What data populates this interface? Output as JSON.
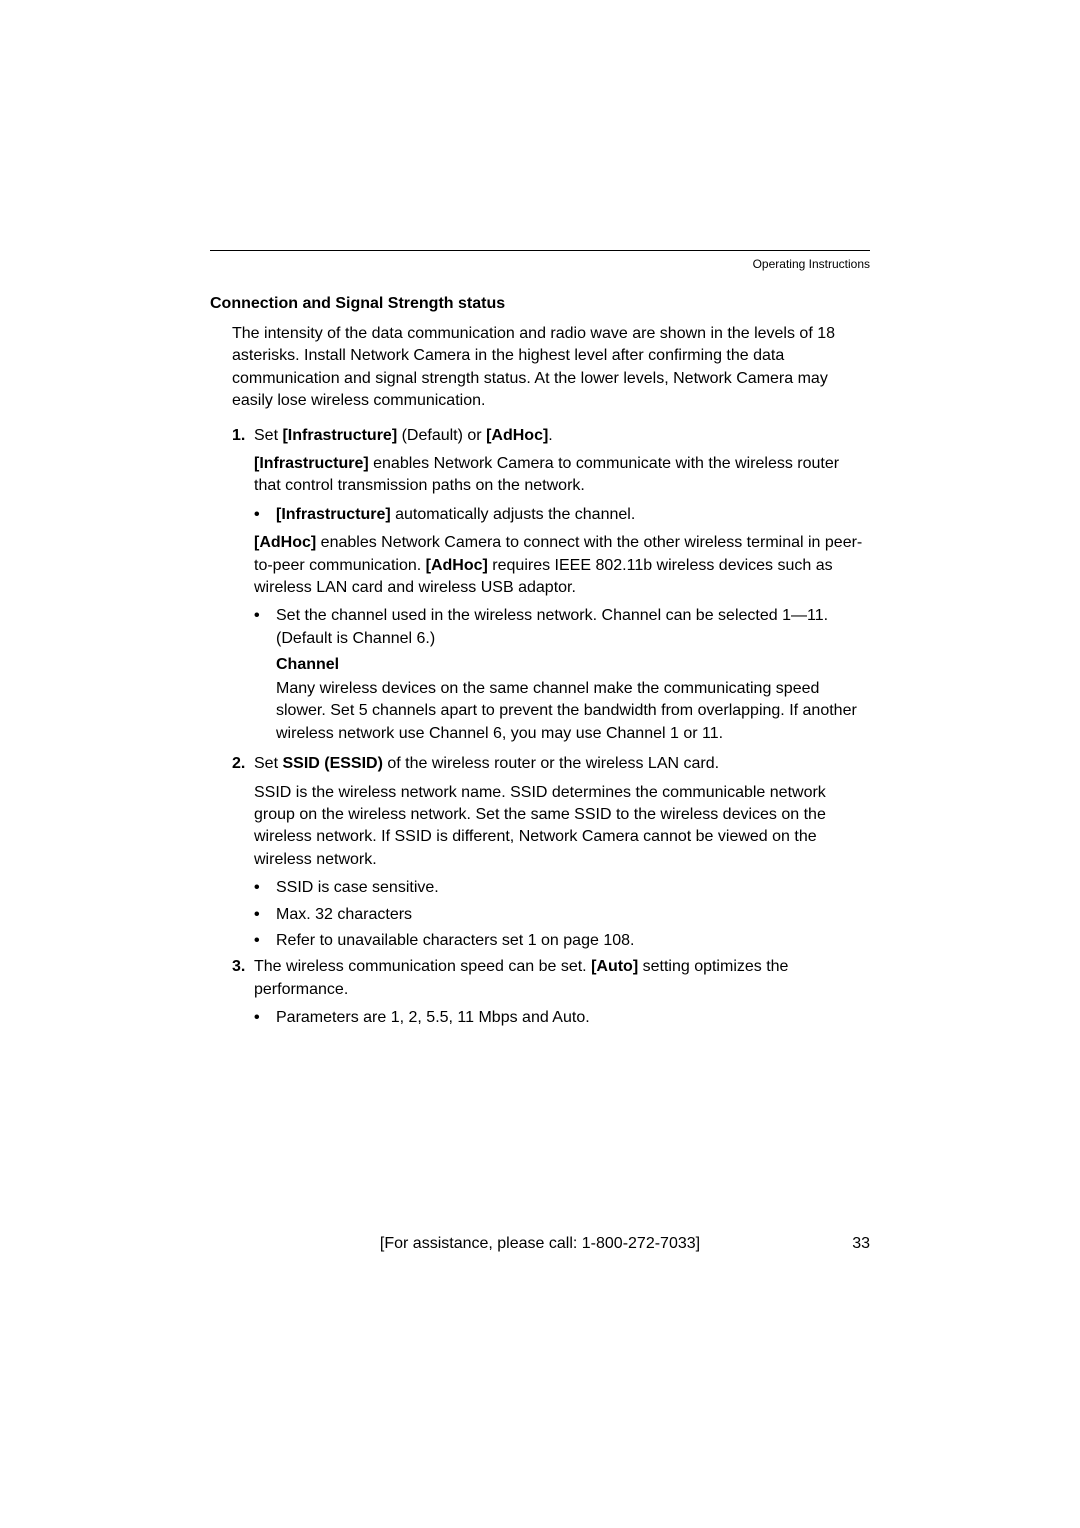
{
  "header": {
    "docTitle": "Operating Instructions"
  },
  "section": {
    "title": "Connection and Signal Strength status",
    "intro": "The intensity of the data communication and radio wave are shown in the levels of 18 asterisks. Install Network Camera in the highest level after confirming the data communication and signal strength status. At the lower levels, Network Camera may easily lose wireless communication."
  },
  "items": {
    "one": {
      "num": "1.",
      "pre": "Set ",
      "b1": "[Infrastructure]",
      "mid1": " (Default) or ",
      "b2": "[AdHoc]",
      "post": ".",
      "p1a": "[Infrastructure]",
      "p1b": " enables Network Camera to communicate with the wireless router that control transmission paths on the network.",
      "bullet1a": "[Infrastructure]",
      "bullet1b": " automatically adjusts the channel.",
      "p2a": "[AdHoc]",
      "p2b": " enables Network Camera to connect with the other wireless terminal in peer-to-peer communication. ",
      "p2c": "[AdHoc]",
      "p2d": " requires IEEE 802.11b wireless devices such as wireless LAN card and wireless USB adaptor.",
      "bullet2": "Set the channel used in the wireless network. Channel can be selected 1—11. (Default is Channel 6.)",
      "subheading": "Channel",
      "subpara": "Many wireless devices on the same channel make the communicating speed slower. Set 5 channels apart to prevent the bandwidth from overlapping. If another wireless network use Channel 6, you may use Channel 1 or 11."
    },
    "two": {
      "num": "2.",
      "pre": "Set ",
      "b1": "SSID (ESSID)",
      "post": " of the wireless router or the wireless LAN card.",
      "p1": "SSID is the wireless network name. SSID determines the communicable network group on the wireless network. Set the same SSID to the wireless devices on the wireless network. If SSID is different, Network Camera cannot be viewed on the wireless network.",
      "bullet1": "SSID is case sensitive.",
      "bullet2": "Max. 32 characters",
      "bullet3": "Refer to unavailable characters set 1 on page 108."
    },
    "three": {
      "num": "3.",
      "pre": "The wireless communication speed can be set. ",
      "b1": "[Auto]",
      "post": " setting optimizes the performance.",
      "bullet1": "Parameters are 1, 2, 5.5, 11 Mbps and Auto."
    }
  },
  "footer": {
    "assist": "[For assistance, please call: 1-800-272-7033]",
    "pageNum": "33"
  },
  "style": {
    "textColor": "#000000",
    "bgColor": "#ffffff",
    "bodyFontSize": 16,
    "headerFontSize": 12
  }
}
